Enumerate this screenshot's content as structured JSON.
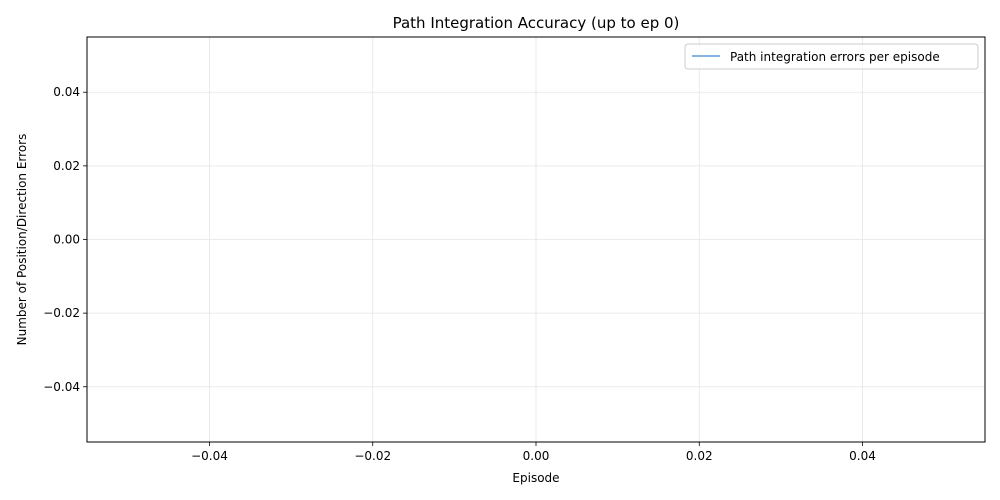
{
  "chart_data": {
    "type": "line",
    "title": "Path Integration Accuracy (up to ep 0)",
    "xlabel": "Episode",
    "ylabel": "Number of Position/Direction Errors",
    "xlim": [
      -0.055,
      0.055
    ],
    "ylim": [
      -0.055,
      0.055
    ],
    "xticks": [
      -0.04,
      -0.02,
      0.0,
      0.02,
      0.04
    ],
    "xtick_labels": [
      "−0.04",
      "−0.02",
      "0.00",
      "0.02",
      "0.04"
    ],
    "yticks": [
      -0.04,
      -0.02,
      0.0,
      0.02,
      0.04
    ],
    "ytick_labels": [
      "−0.04",
      "−0.02",
      "0.00",
      "0.02",
      "0.04"
    ],
    "grid": true,
    "legend_position": "top-right",
    "series": [
      {
        "name": "Path integration errors per episode",
        "color": "#5b9bd5",
        "x": [],
        "y": []
      }
    ]
  }
}
